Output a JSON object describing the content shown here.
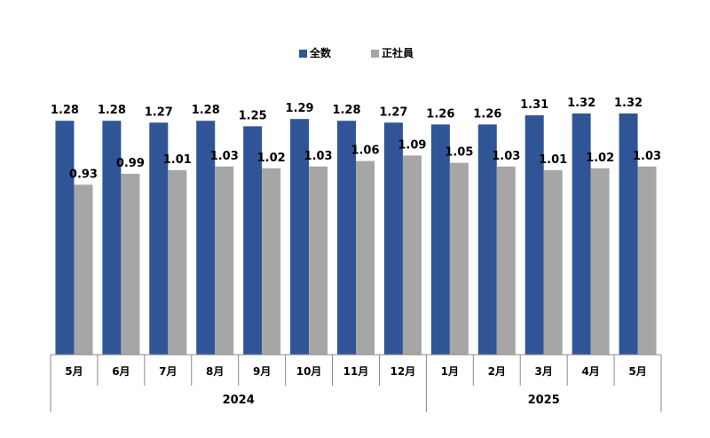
{
  "chart_data": {
    "type": "bar",
    "categories": [
      "5月",
      "6月",
      "7月",
      "8月",
      "9月",
      "10月",
      "11月",
      "12月",
      "1月",
      "2月",
      "3月",
      "4月",
      "5月"
    ],
    "year_groups": [
      {
        "label": "2024",
        "count": 8
      },
      {
        "label": "2025",
        "count": 5
      }
    ],
    "series": [
      {
        "name": "全数",
        "color": "#2f5597",
        "values": [
          1.28,
          1.28,
          1.27,
          1.28,
          1.25,
          1.29,
          1.28,
          1.27,
          1.26,
          1.26,
          1.31,
          1.32,
          1.32
        ]
      },
      {
        "name": "正社員",
        "color": "#a6a6a6",
        "values": [
          0.93,
          0.99,
          1.01,
          1.03,
          1.02,
          1.03,
          1.06,
          1.09,
          1.05,
          1.03,
          1.01,
          1.02,
          1.03
        ]
      }
    ],
    "value_labels": [
      [
        "1.28",
        "1.28",
        "1.27",
        "1.28",
        "1.25",
        "1.29",
        "1.28",
        "1.27",
        "1.26",
        "1.26",
        "1.31",
        "1.32",
        "1.32"
      ],
      [
        "0.93",
        "0.99",
        "1.01",
        "1.03",
        "1.02",
        "1.03",
        "1.06",
        "1.09",
        "1.05",
        "1.03",
        "1.01",
        "1.02",
        "1.03"
      ]
    ],
    "ylim": [
      0,
      1.32
    ],
    "grid": false,
    "legend_position": "top-center"
  }
}
